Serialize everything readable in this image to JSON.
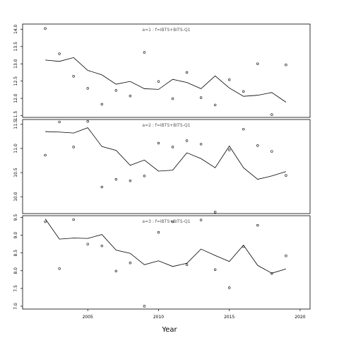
{
  "chart_data": {
    "type": "scatter",
    "xlabel": "Year",
    "xlim": [
      2000.4,
      2020.7
    ],
    "x_ticks": [
      2005,
      2010,
      2015,
      2020
    ],
    "years": [
      2002,
      2003,
      2004,
      2005,
      2006,
      2007,
      2008,
      2009,
      2010,
      2011,
      2012,
      2013,
      2014,
      2015,
      2016,
      2017,
      2018,
      2019
    ],
    "panels": [
      {
        "label": "a=1 :  f=IBTS+BITS-Q1",
        "ylim": [
          11.45,
          14.15
        ],
        "y_ticks": [
          11.5,
          12.0,
          12.5,
          13.0,
          13.5,
          14.0
        ],
        "y_tick_labels": [
          "11.5",
          "12.0",
          "12.5",
          "13.0",
          "13.5",
          "14.0"
        ],
        "points": [
          14.02,
          13.29,
          12.64,
          12.29,
          11.83,
          12.23,
          12.07,
          13.33,
          12.49,
          11.99,
          12.75,
          12.02,
          11.81,
          12.54,
          12.2,
          13.0,
          11.53,
          12.97
        ],
        "fit": [
          13.11,
          13.07,
          13.18,
          12.81,
          12.68,
          12.41,
          12.49,
          12.28,
          12.26,
          12.55,
          12.46,
          12.28,
          12.65,
          12.3,
          12.06,
          12.09,
          12.17,
          11.89
        ]
      },
      {
        "label": "a=2 :  f=IBTS+BITS-Q1",
        "ylim": [
          9.65,
          11.6
        ],
        "y_ticks": [
          10.0,
          10.5,
          11.0,
          11.5
        ],
        "y_tick_labels": [
          "10.0",
          "10.5",
          "11.0",
          "11.5"
        ],
        "points": [
          10.86,
          11.55,
          11.03,
          11.56,
          10.2,
          10.36,
          10.33,
          10.43,
          11.11,
          11.03,
          11.16,
          11.09,
          9.68,
          10.97,
          11.4,
          11.06,
          10.94,
          10.44
        ],
        "fit": [
          11.35,
          11.34,
          11.32,
          11.43,
          11.04,
          10.96,
          10.65,
          10.76,
          10.53,
          10.55,
          10.91,
          10.79,
          10.6,
          11.05,
          10.6,
          10.36,
          10.43,
          10.52
        ]
      },
      {
        "label": "a=3 :  f=IBTS+BITS-Q1",
        "ylim": [
          6.92,
          9.55
        ],
        "y_ticks": [
          7.0,
          7.5,
          8.0,
          8.5,
          9.0,
          9.5
        ],
        "y_tick_labels": [
          "7.0",
          "7.5",
          "8.0",
          "8.5",
          "9.0",
          "9.5"
        ],
        "points": [
          9.38,
          8.06,
          9.44,
          8.75,
          8.7,
          7.99,
          8.22,
          7.0,
          9.08,
          9.38,
          8.17,
          9.43,
          8.03,
          7.52,
          8.68,
          9.28,
          7.92,
          8.42
        ],
        "fit": [
          9.46,
          8.89,
          8.92,
          8.91,
          9.02,
          8.58,
          8.49,
          8.17,
          8.28,
          8.12,
          8.21,
          8.61,
          8.43,
          8.26,
          8.72,
          8.15,
          7.93,
          8.05
        ]
      }
    ]
  }
}
